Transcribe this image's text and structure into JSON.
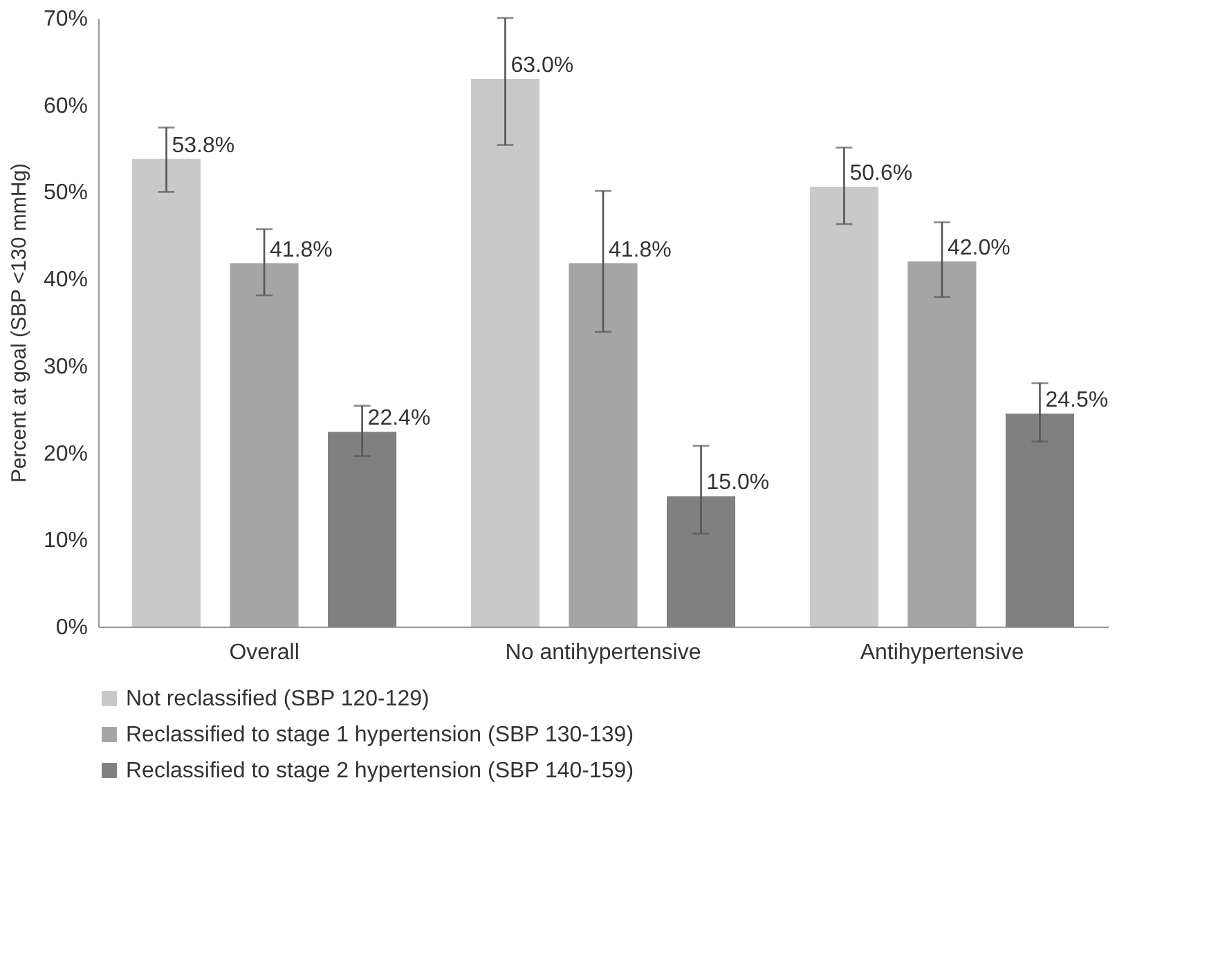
{
  "chart_data": {
    "type": "bar",
    "ylabel": "Percent at goal (SBP <130 mmHg)",
    "categories": [
      "Overall",
      "No antihypertensive",
      "Antihypertensive"
    ],
    "series": [
      {
        "name": "Not reclassified (SBP 120-129)",
        "color": "#c9c9c9",
        "values": [
          53.8,
          63.0,
          50.6
        ],
        "value_labels": [
          "53.8%",
          "63.0%",
          "50.6%"
        ],
        "errors": [
          [
            50.0,
            57.4
          ],
          [
            55.4,
            70.0
          ],
          [
            46.3,
            55.1
          ]
        ]
      },
      {
        "name": "Reclassified to stage 1 hypertension (SBP 130-139)",
        "color": "#a5a5a5",
        "values": [
          41.8,
          41.8,
          42.0
        ],
        "value_labels": [
          "41.8%",
          "41.8%",
          "42.0%"
        ],
        "errors": [
          [
            38.1,
            45.7
          ],
          [
            33.9,
            50.1
          ],
          [
            37.9,
            46.5
          ]
        ]
      },
      {
        "name": "Reclassified to stage 2 hypertension (SBP 140-159)",
        "color": "#808080",
        "values": [
          22.4,
          15.0,
          24.5
        ],
        "value_labels": [
          "22.4%",
          "15.0%",
          "24.5%"
        ],
        "errors": [
          [
            19.6,
            25.4
          ],
          [
            10.7,
            20.8
          ],
          [
            21.3,
            28.0
          ]
        ]
      }
    ],
    "ylim": [
      0,
      70
    ],
    "yticks": [
      {
        "value": 0,
        "label": "0%"
      },
      {
        "value": 10,
        "label": "10%"
      },
      {
        "value": 20,
        "label": "20%"
      },
      {
        "value": 30,
        "label": "30%"
      },
      {
        "value": 40,
        "label": "40%"
      },
      {
        "value": 50,
        "label": "50%"
      },
      {
        "value": 60,
        "label": "60%"
      },
      {
        "value": 70,
        "label": "70%"
      }
    ],
    "grid": false,
    "legend": "bottom"
  }
}
